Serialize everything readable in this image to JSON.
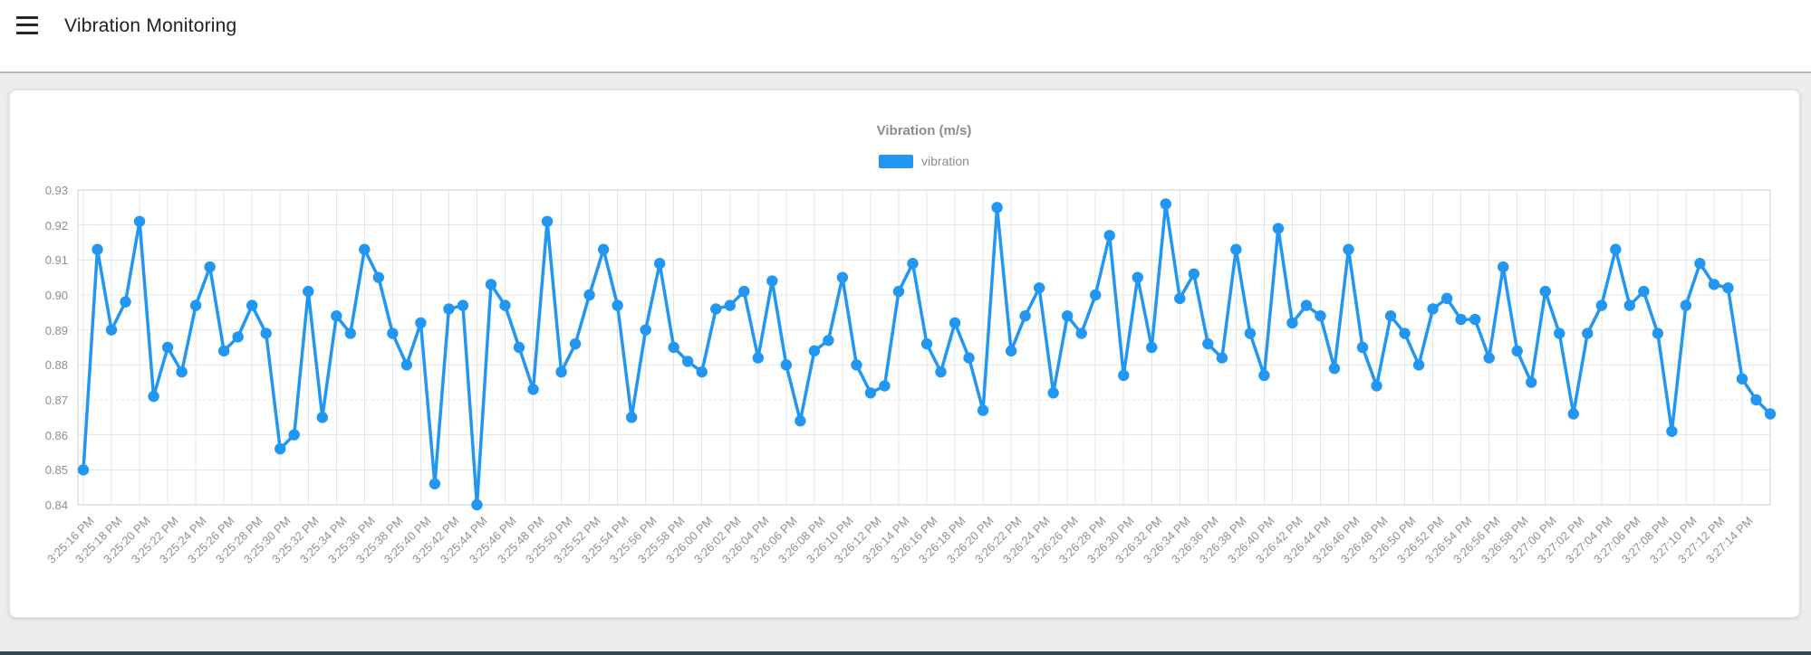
{
  "app": {
    "title": "Vibration Monitoring"
  },
  "chart": {
    "title": "Vibration (m/s)",
    "legend": [
      {
        "label": "vibration",
        "color": "#2196F3"
      }
    ]
  },
  "chart_data": {
    "type": "line",
    "title": "Vibration (m/s)",
    "legend_position": "top-center",
    "grid": true,
    "marker": "circle",
    "ylim": [
      0.84,
      0.93
    ],
    "y_ticks": [
      0.93,
      0.92,
      0.91,
      0.9,
      0.89,
      0.88,
      0.87,
      0.86,
      0.85,
      0.84
    ],
    "y_tick_labels": [
      "0.93",
      "0.92",
      "0.91",
      "0.90",
      "0.89",
      "0.88",
      "0.87",
      "0.86",
      "0.85",
      "0.84"
    ],
    "x_points_per_label_interval": 2,
    "x_tick_labels": [
      "3:25:16 PM",
      "3:25:18 PM",
      "3:25:20 PM",
      "3:25:22 PM",
      "3:25:24 PM",
      "3:25:26 PM",
      "3:25:28 PM",
      "3:25:30 PM",
      "3:25:32 PM",
      "3:25:34 PM",
      "3:25:36 PM",
      "3:25:38 PM",
      "3:25:40 PM",
      "3:25:42 PM",
      "3:25:44 PM",
      "3:25:46 PM",
      "3:25:48 PM",
      "3:25:50 PM",
      "3:25:52 PM",
      "3:25:54 PM",
      "3:25:56 PM",
      "3:25:58 PM",
      "3:26:00 PM",
      "3:26:02 PM",
      "3:26:04 PM",
      "3:26:06 PM",
      "3:26:08 PM",
      "3:26:10 PM",
      "3:26:12 PM",
      "3:26:14 PM",
      "3:26:16 PM",
      "3:26:18 PM",
      "3:26:20 PM",
      "3:26:22 PM",
      "3:26:24 PM",
      "3:26:26 PM",
      "3:26:28 PM",
      "3:26:30 PM",
      "3:26:32 PM",
      "3:26:34 PM",
      "3:26:36 PM",
      "3:26:38 PM",
      "3:26:40 PM",
      "3:26:42 PM",
      "3:26:44 PM",
      "3:26:46 PM",
      "3:26:48 PM",
      "3:26:50 PM",
      "3:26:52 PM",
      "3:26:54 PM",
      "3:26:56 PM",
      "3:26:58 PM",
      "3:27:00 PM",
      "3:27:02 PM",
      "3:27:04 PM",
      "3:27:06 PM",
      "3:27:08 PM",
      "3:27:10 PM",
      "3:27:12 PM",
      "3:27:14 PM"
    ],
    "series": [
      {
        "name": "vibration",
        "color": "#2196F3",
        "values": [
          0.85,
          0.913,
          0.89,
          0.898,
          0.921,
          0.871,
          0.885,
          0.878,
          0.897,
          0.908,
          0.884,
          0.888,
          0.897,
          0.889,
          0.856,
          0.86,
          0.901,
          0.865,
          0.894,
          0.889,
          0.913,
          0.905,
          0.889,
          0.88,
          0.892,
          0.846,
          0.896,
          0.897,
          0.84,
          0.903,
          0.897,
          0.885,
          0.873,
          0.921,
          0.878,
          0.886,
          0.9,
          0.913,
          0.897,
          0.865,
          0.89,
          0.909,
          0.885,
          0.881,
          0.878,
          0.896,
          0.897,
          0.901,
          0.882,
          0.904,
          0.88,
          0.864,
          0.884,
          0.887,
          0.905,
          0.88,
          0.872,
          0.874,
          0.901,
          0.909,
          0.886,
          0.878,
          0.892,
          0.882,
          0.867,
          0.925,
          0.884,
          0.894,
          0.902,
          0.872,
          0.894,
          0.889,
          0.9,
          0.917,
          0.877,
          0.905,
          0.885,
          0.926,
          0.899,
          0.906,
          0.886,
          0.882,
          0.913,
          0.889,
          0.877,
          0.919,
          0.892,
          0.897,
          0.894,
          0.879,
          0.913,
          0.885,
          0.874,
          0.894,
          0.889,
          0.88,
          0.896,
          0.899,
          0.893,
          0.893,
          0.882,
          0.908,
          0.884,
          0.875,
          0.901,
          0.889,
          0.866,
          0.889,
          0.897,
          0.913,
          0.897,
          0.901,
          0.889,
          0.861,
          0.897,
          0.909,
          0.903,
          0.902,
          0.876,
          0.87,
          0.866
        ]
      }
    ]
  },
  "colors": {
    "line": "#2196F3",
    "page_bg": "#ededed",
    "card_bg": "#ffffff",
    "bottom_bar": "#37474F",
    "text_primary": "#212121",
    "text_secondary": "#8f8f8f"
  }
}
